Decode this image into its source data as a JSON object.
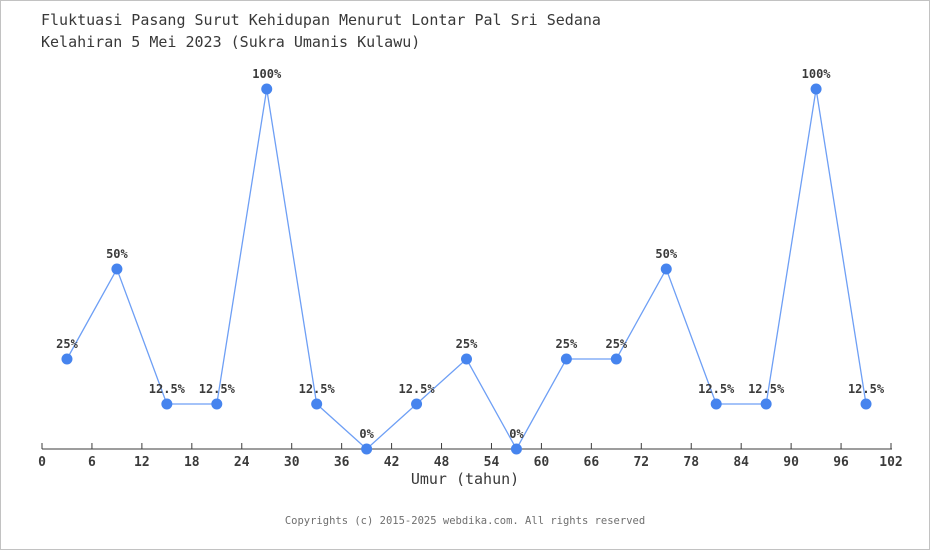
{
  "page": {
    "title_line1": "Fluktuasi Pasang Surut Kehidupan Menurut Lontar Pal Sri Sedana",
    "title_line2": "Kelahiran 5 Mei 2023 (Sukra Umanis Kulawu)",
    "footer": "Copyrights (c) 2015-2025 webdika.com. All rights reserved"
  },
  "chart_data": {
    "type": "line",
    "title": "Fluktuasi Pasang Surut Kehidupan Menurut Lontar Pal Sri Sedana Kelahiran 5 Mei 2023 (Sukra Umanis Kulawu)",
    "xlabel": "Umur (tahun)",
    "ylabel": "",
    "x": [
      3,
      9,
      15,
      21,
      27,
      33,
      39,
      45,
      51,
      57,
      63,
      69,
      75,
      81,
      87,
      93,
      99
    ],
    "values": [
      25,
      50,
      12.5,
      12.5,
      100,
      12.5,
      0,
      12.5,
      25,
      0,
      25,
      25,
      50,
      12.5,
      12.5,
      100,
      12.5
    ],
    "point_labels": [
      "25%",
      "50%",
      "12.5%",
      "12.5%",
      "100%",
      "12.5%",
      "0%",
      "12.5%",
      "25%",
      "0%",
      "25%",
      "25%",
      "50%",
      "12.5%",
      "12.5%",
      "100%",
      "12.5%"
    ],
    "x_ticks": [
      0,
      6,
      12,
      18,
      24,
      30,
      36,
      42,
      48,
      54,
      60,
      66,
      72,
      78,
      84,
      90,
      96,
      102
    ],
    "xlim": [
      0,
      102
    ],
    "ylim": [
      0,
      100
    ],
    "grid": false,
    "legend": "none",
    "colors": {
      "line": "#6e9ff5",
      "marker": "#4684ee",
      "axis": "#3b3b3b",
      "tick_label": "#3b3b3b",
      "value_label": "#3b3b3b"
    }
  }
}
